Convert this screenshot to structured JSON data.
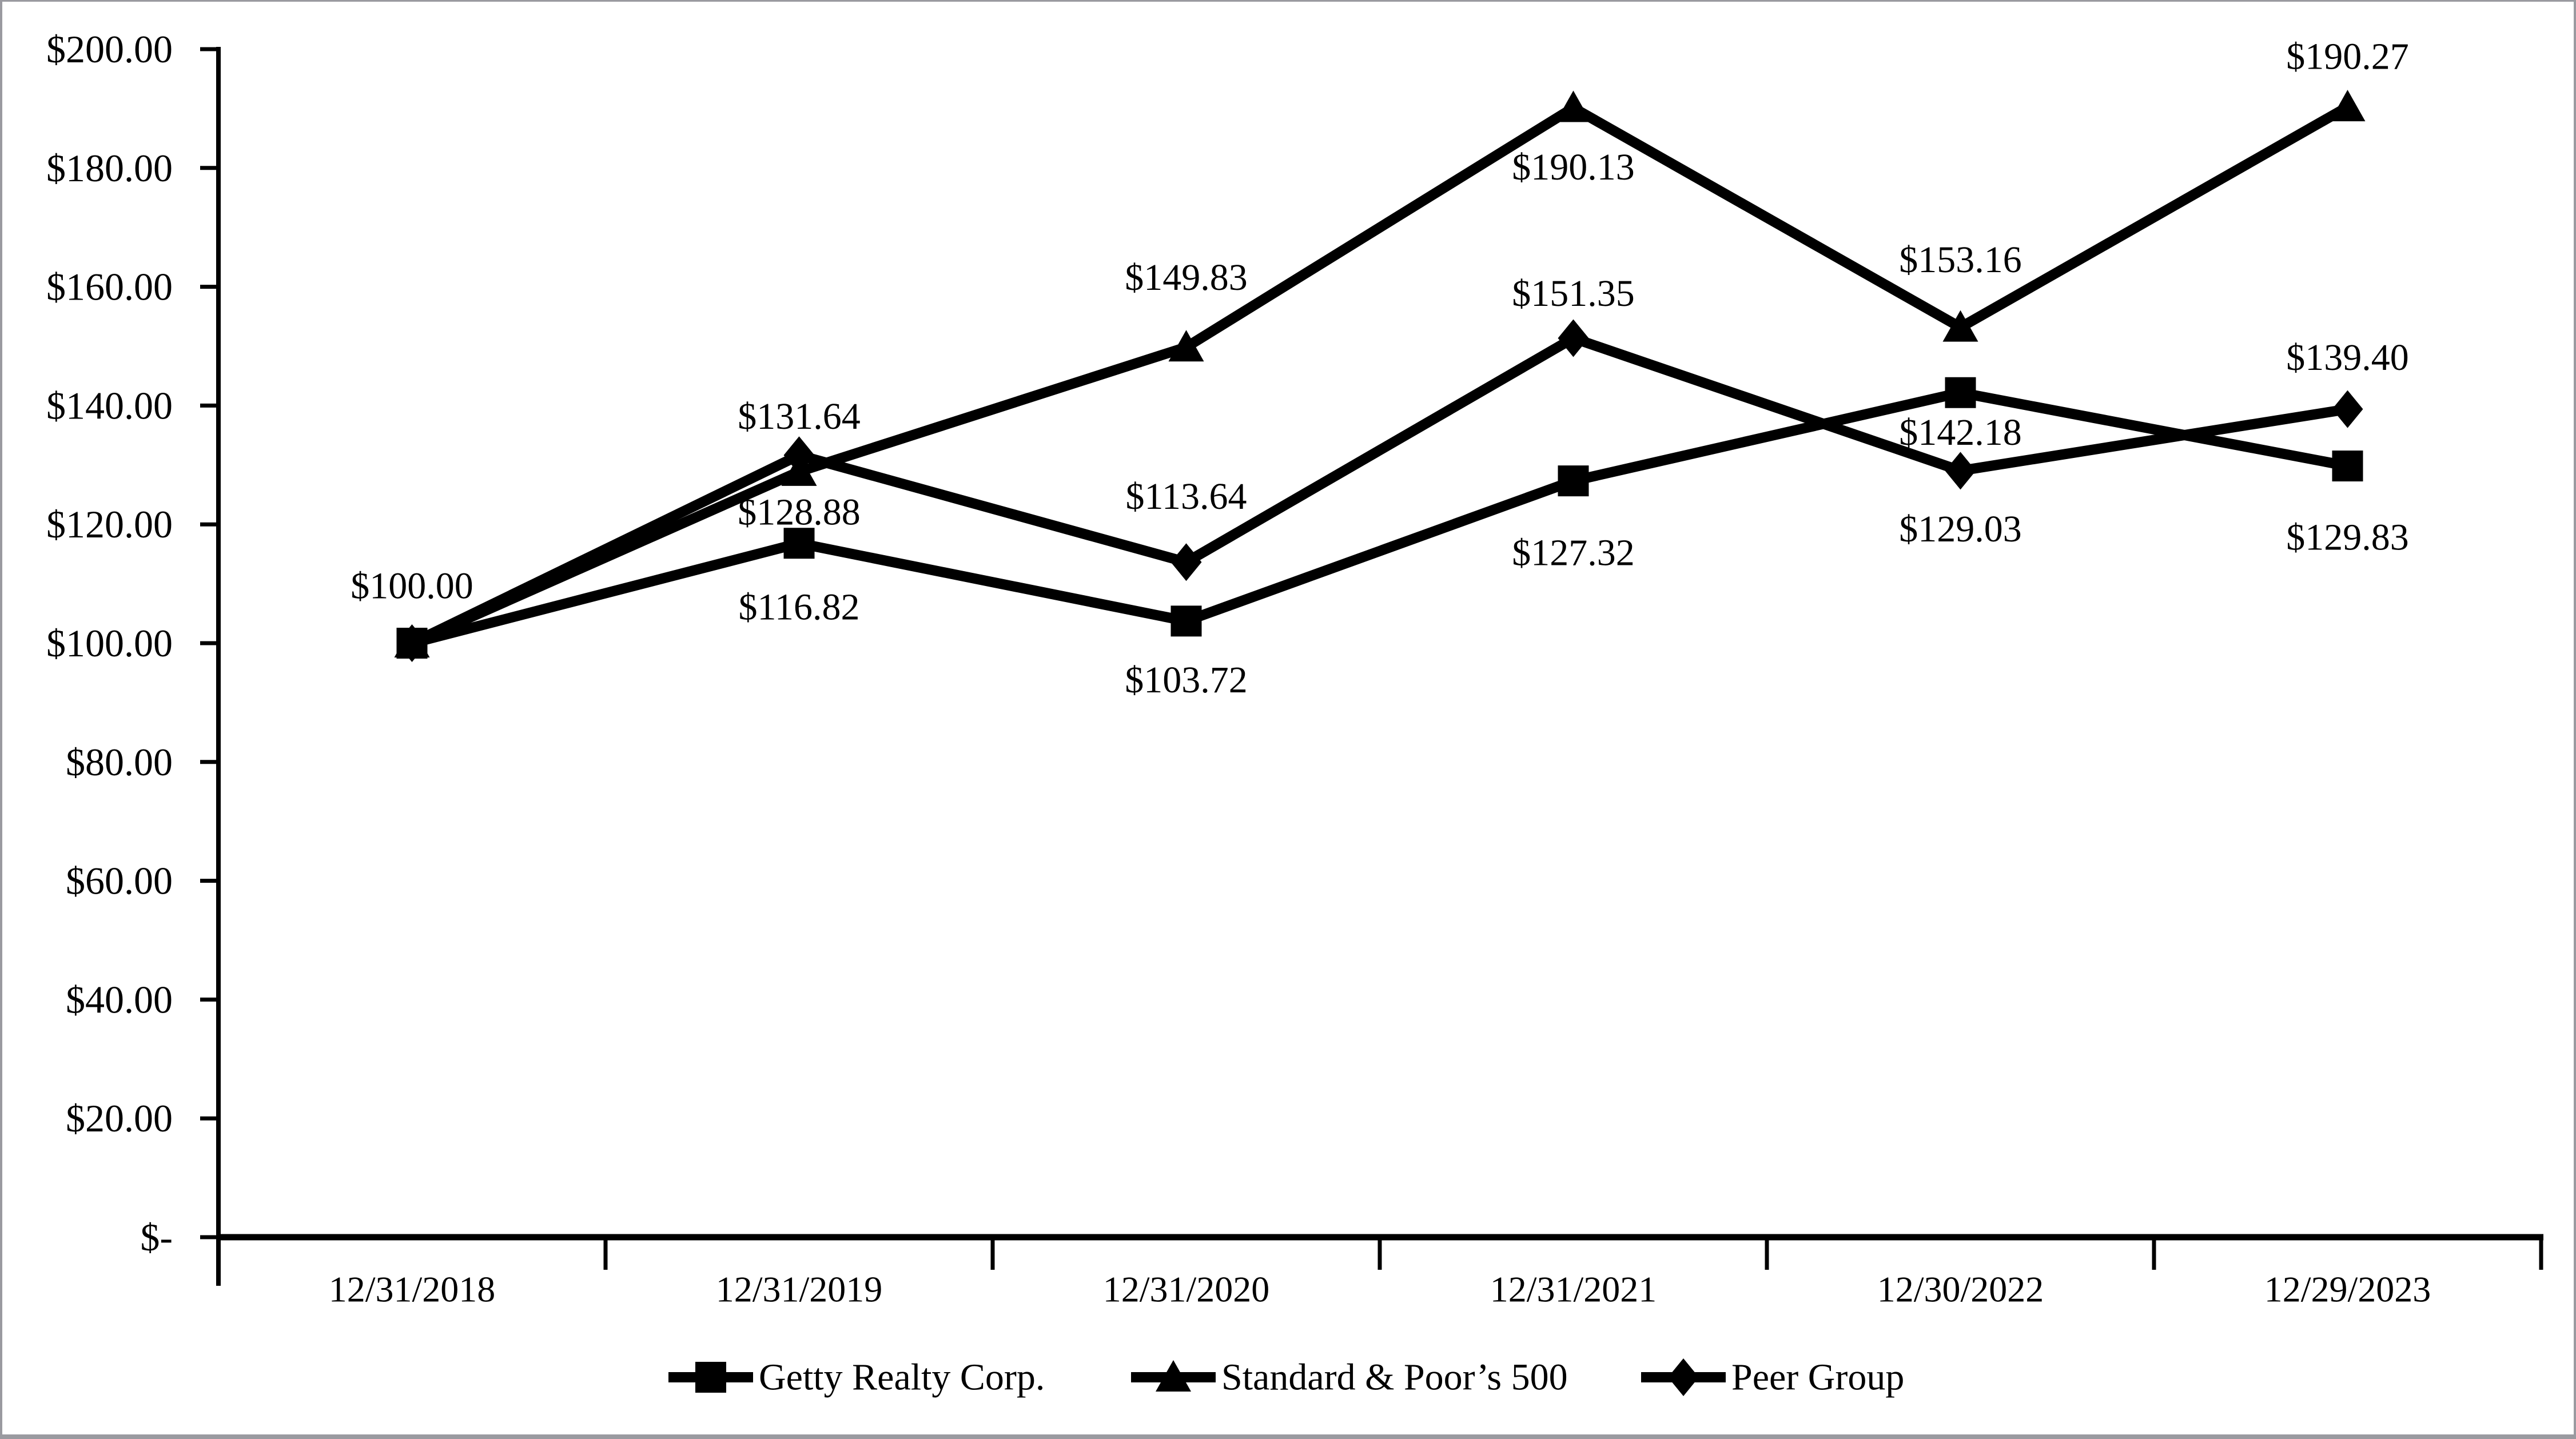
{
  "window": {
    "background": "#ffffff",
    "border_color": "#9a9aa0"
  },
  "chart_data": {
    "type": "line",
    "title": "",
    "categories": [
      "12/31/2018",
      "12/31/2019",
      "12/31/2020",
      "12/31/2021",
      "12/30/2022",
      "12/29/2023"
    ],
    "series": [
      {
        "name": "Getty Realty Corp.",
        "marker": "square",
        "color": "#000000",
        "values": [
          100.0,
          116.82,
          103.72,
          127.32,
          142.18,
          129.83
        ],
        "point_labels": [
          "$100.00",
          "$116.82",
          "$103.72",
          "$127.32",
          "$142.18",
          "$129.83"
        ],
        "label_dy": [
          -100,
          112,
          103,
          126,
          70,
          125
        ]
      },
      {
        "name": "Standard & Poor’s 500",
        "marker": "triangle",
        "color": "#000000",
        "values": [
          100.0,
          128.88,
          149.83,
          190.13,
          153.16,
          190.27
        ],
        "point_labels": [
          null,
          "$128.88",
          "$149.83",
          "$190.13",
          "$153.16",
          "$190.27"
        ],
        "label_dy": [
          0,
          71,
          -122,
          104,
          -118,
          -88
        ]
      },
      {
        "name": "Peer Group",
        "marker": "diamond",
        "color": "#000000",
        "values": [
          100.0,
          131.64,
          113.64,
          151.35,
          129.03,
          139.4
        ],
        "point_labels": [
          null,
          "$131.64",
          "$113.64",
          "$151.35",
          "$129.03",
          "$139.40"
        ],
        "label_dy": [
          0,
          -68,
          -115,
          -78,
          102,
          -90
        ]
      }
    ],
    "y_axis": {
      "min": 0,
      "max": 200,
      "step": 20,
      "tick_labels": [
        "$-",
        "$20.00",
        "$40.00",
        "$60.00",
        "$80.00",
        "$100.00",
        "$120.00",
        "$140.00",
        "$160.00",
        "$180.00",
        "$200.00"
      ]
    },
    "legend_position": "bottom",
    "grid": false,
    "axis_color": "#000000"
  }
}
